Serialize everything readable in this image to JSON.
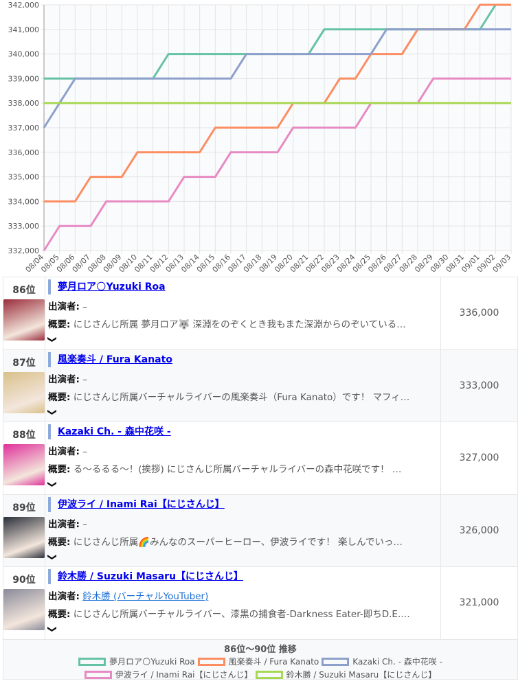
{
  "chart_data": {
    "type": "line",
    "step": false,
    "x": [
      "08/04",
      "08/05",
      "08/06",
      "08/07",
      "08/08",
      "08/09",
      "08/10",
      "08/11",
      "08/12",
      "08/13",
      "08/14",
      "08/15",
      "08/16",
      "08/17",
      "08/18",
      "08/19",
      "08/20",
      "08/21",
      "08/22",
      "08/23",
      "08/24",
      "08/25",
      "08/26",
      "08/27",
      "08/28",
      "08/29",
      "08/30",
      "08/31",
      "09/01",
      "09/02",
      "09/03"
    ],
    "ylim": [
      332000,
      342000
    ],
    "yticks": [
      332000,
      333000,
      334000,
      335000,
      336000,
      337000,
      338000,
      339000,
      340000,
      341000,
      342000
    ],
    "grid": true,
    "title": "86位〜90位 推移",
    "legend_position": "bottom",
    "series": [
      {
        "name": "夢月ロア🌕Yuzuki Roa",
        "color": "#66c2a5",
        "values": [
          339000,
          339000,
          339000,
          339000,
          339000,
          339000,
          339000,
          339000,
          340000,
          340000,
          340000,
          340000,
          340000,
          340000,
          340000,
          340000,
          340000,
          340000,
          341000,
          341000,
          341000,
          341000,
          341000,
          341000,
          341000,
          341000,
          341000,
          341000,
          341000,
          342000,
          342000
        ]
      },
      {
        "name": "風楽奏斗 / Fura Kanato",
        "color": "#fc8d62",
        "values": [
          334000,
          334000,
          334000,
          335000,
          335000,
          335000,
          336000,
          336000,
          336000,
          336000,
          336000,
          337000,
          337000,
          337000,
          337000,
          337000,
          338000,
          338000,
          338000,
          339000,
          339000,
          340000,
          340000,
          340000,
          341000,
          341000,
          341000,
          341000,
          342000,
          342000,
          342000
        ]
      },
      {
        "name": "Kazaki Ch. - 森中花咲 -",
        "color": "#8da0cb",
        "values": [
          337000,
          338000,
          339000,
          339000,
          339000,
          339000,
          339000,
          339000,
          339000,
          339000,
          339000,
          339000,
          339000,
          340000,
          340000,
          340000,
          340000,
          340000,
          340000,
          340000,
          340000,
          340000,
          341000,
          341000,
          341000,
          341000,
          341000,
          341000,
          341000,
          341000,
          341000
        ]
      },
      {
        "name": "伊波ライ / Inami Rai【にじさんじ】",
        "color": "#e78ac3",
        "values": [
          332000,
          333000,
          333000,
          333000,
          334000,
          334000,
          334000,
          334000,
          334000,
          335000,
          335000,
          335000,
          336000,
          336000,
          336000,
          336000,
          337000,
          337000,
          337000,
          337000,
          337000,
          338000,
          338000,
          338000,
          338000,
          339000,
          339000,
          339000,
          339000,
          339000,
          339000
        ]
      },
      {
        "name": "鈴木勝 / Suzuki Masaru【にじさんじ】",
        "color": "#a6d854",
        "values": [
          338000,
          338000,
          338000,
          338000,
          338000,
          338000,
          338000,
          338000,
          338000,
          338000,
          338000,
          338000,
          338000,
          338000,
          338000,
          338000,
          338000,
          338000,
          338000,
          338000,
          338000,
          338000,
          338000,
          338000,
          338000,
          338000,
          338000,
          338000,
          338000,
          338000,
          338000
        ]
      }
    ]
  },
  "labels": {
    "performer": "出演者:",
    "summary": "概要:"
  },
  "rows": [
    {
      "rank": "86位",
      "title": "夢月ロア🌕Yuzuki Roa",
      "performer": "–",
      "summary": "にじさんじ所属 夢月ロア🐺 深淵をのぞくとき我もまた深淵からのぞいている…",
      "value": "336,000",
      "thumb": "#9a2c3a"
    },
    {
      "rank": "87位",
      "title": "風楽奏斗 / Fura Kanato",
      "performer": "–",
      "summary": "にじさんじ所属バーチャルライバーの風楽奏斗（Fura Kanato）です！ マフィ…",
      "value": "333,000",
      "thumb": "#d9c08a"
    },
    {
      "rank": "88位",
      "title": "Kazaki Ch. - 森中花咲 -",
      "performer": "–",
      "summary": "る～るるる～！(挨拶) にじさんじ所属バーチャルライバーの森中花咲です！ …",
      "value": "327,000",
      "thumb": "#e0309a"
    },
    {
      "rank": "89位",
      "title": "伊波ライ / Inami Rai【にじさんじ】",
      "performer": "–",
      "summary": "にじさんじ所属🌈みんなのスーパーヒーロー、伊波ライです！ 楽しんでいっ…",
      "value": "326,000",
      "thumb": "#2a2f3a"
    },
    {
      "rank": "90位",
      "title": "鈴木勝 / Suzuki Masaru【にじさんじ】",
      "performer": "鈴木勝 (バーチャルYouTuber)",
      "performer_link": true,
      "summary": "にじさんじ所属バーチャルライバー、漆黒の捕食者-Darkness Eater-即ちD.E.…",
      "value": "321,000",
      "thumb": "#8a8a9a"
    }
  ],
  "expand_icon": "chevron-down-icon"
}
